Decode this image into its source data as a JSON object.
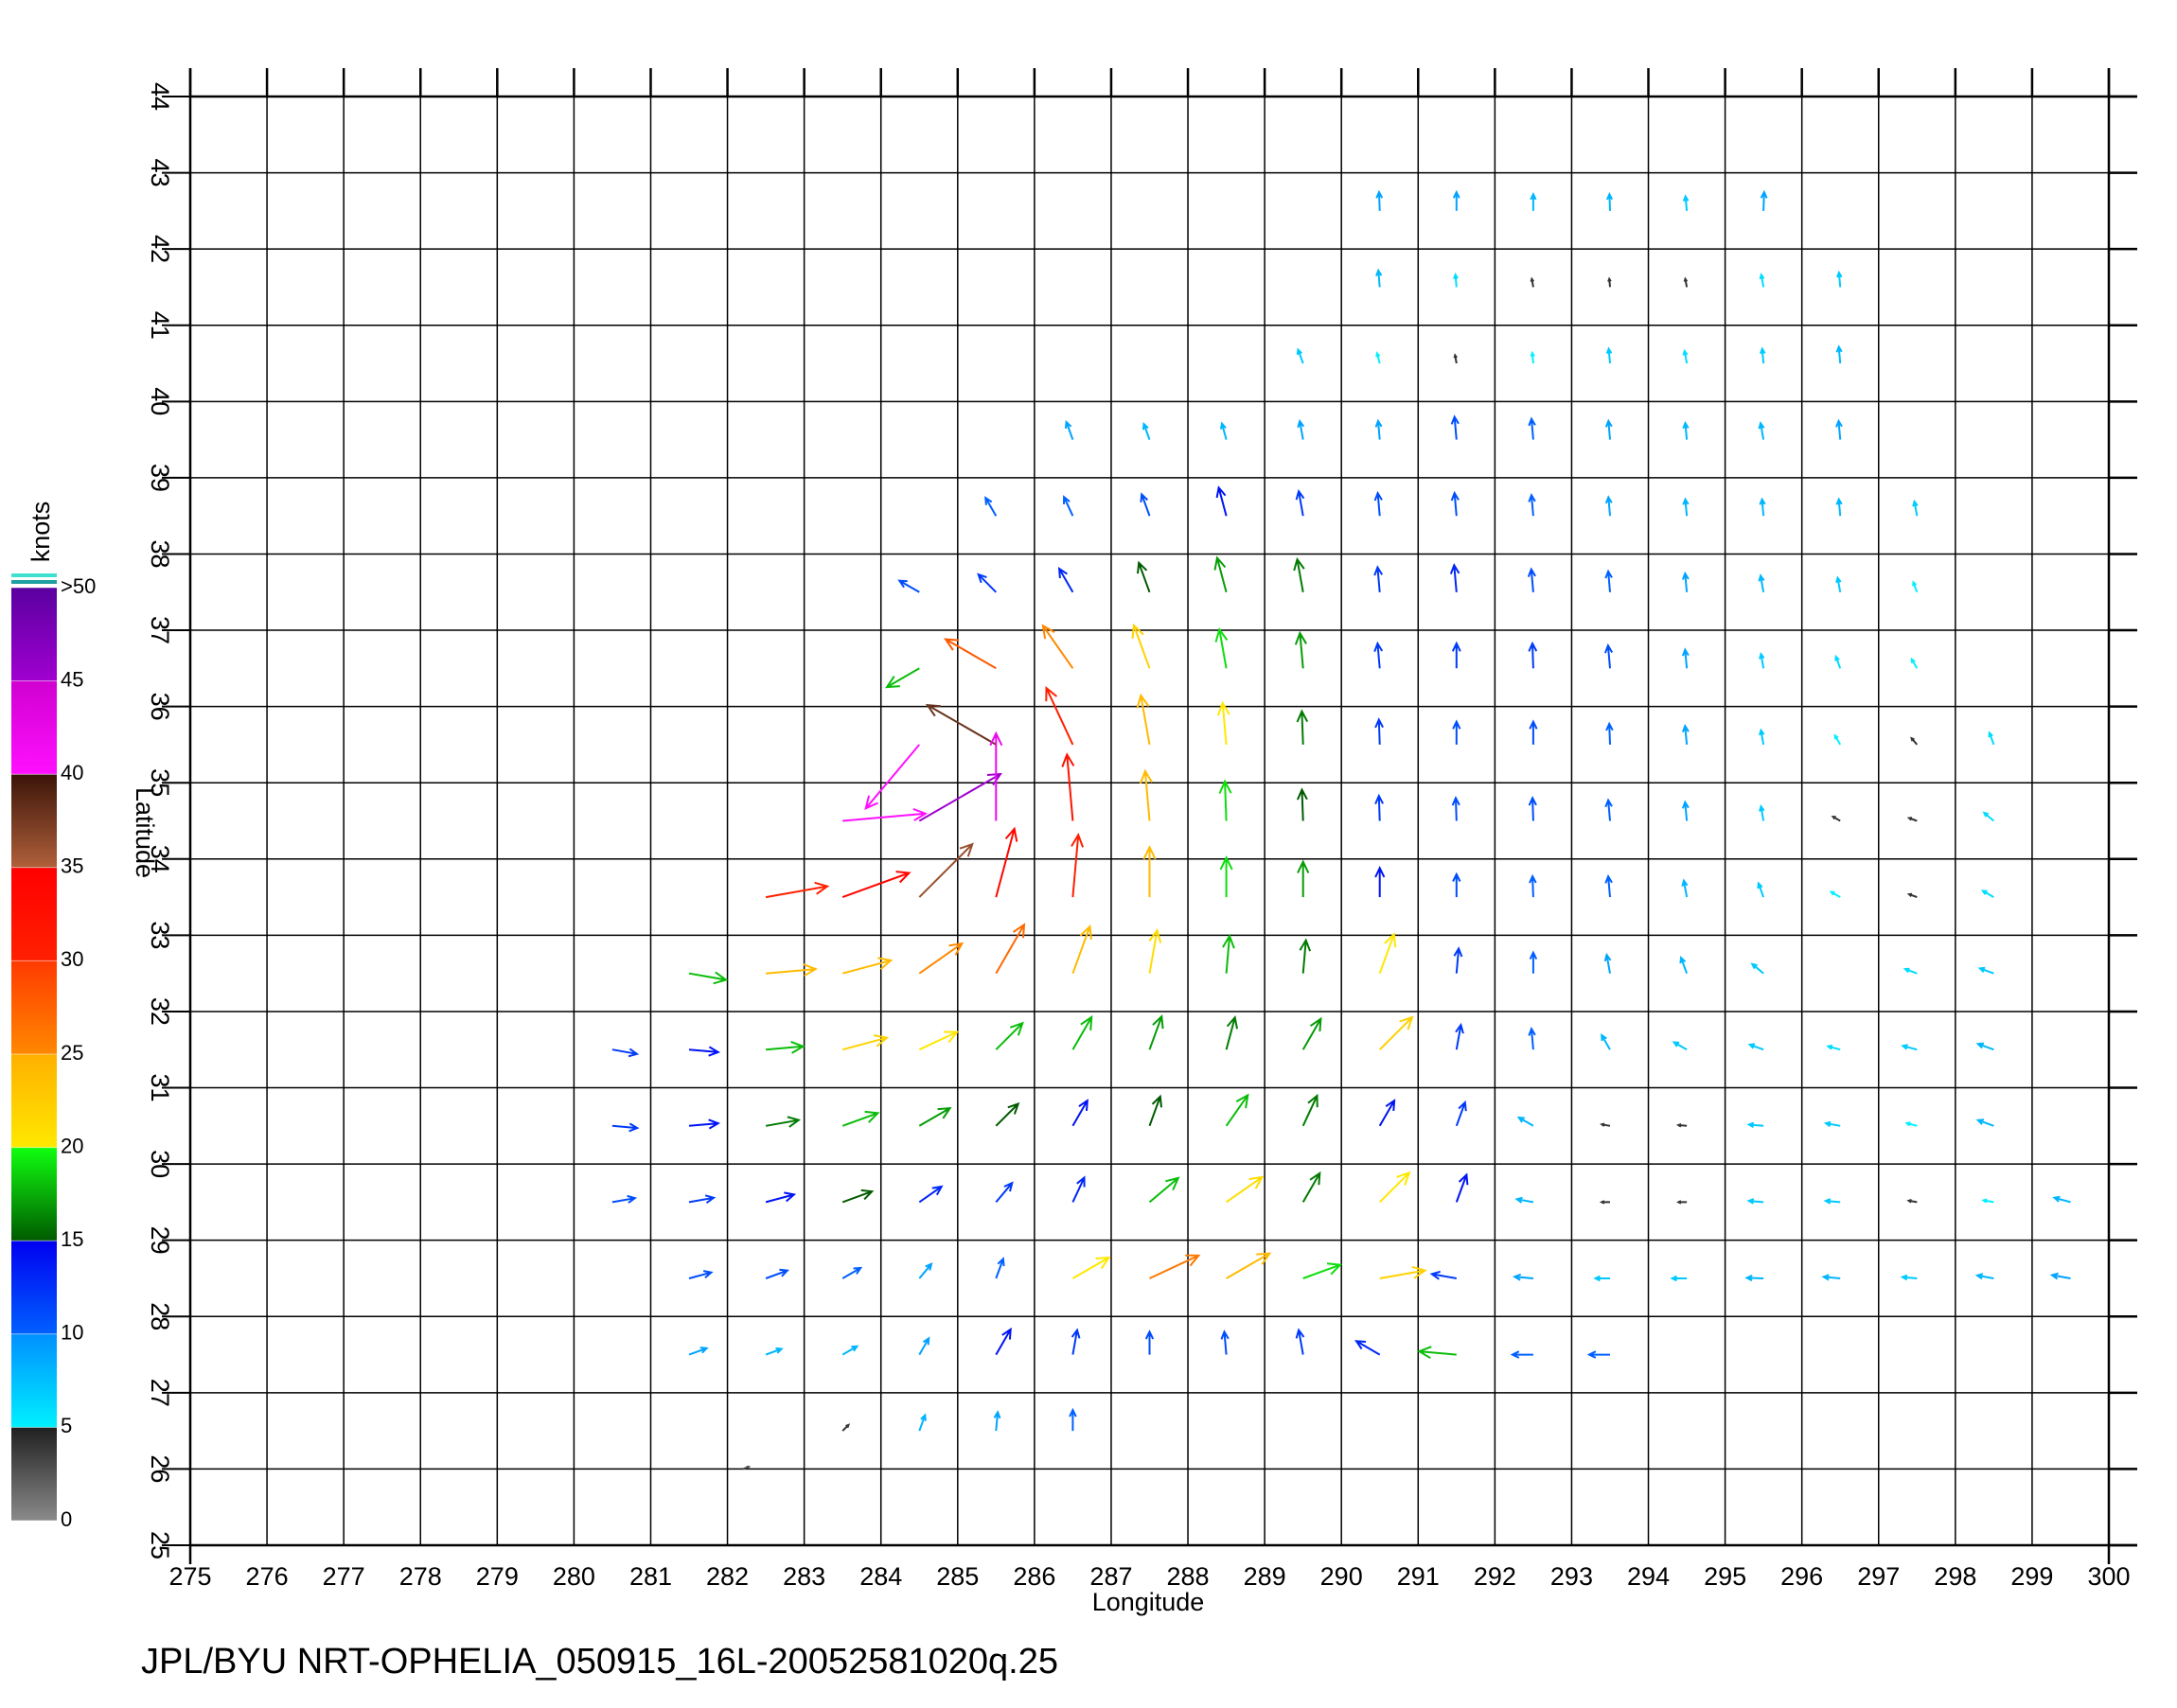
{
  "chart_data": {
    "type": "vector",
    "xlabel": "Longitude",
    "ylabel": "Latitude",
    "source": "JPL/BYU NRT-OPHELIA_050915_16L-20052581020q.25",
    "xlim": [
      275,
      300
    ],
    "ylim": [
      25,
      44
    ],
    "xticks": [
      275,
      276,
      277,
      278,
      279,
      280,
      281,
      282,
      283,
      284,
      285,
      286,
      287,
      288,
      289,
      290,
      291,
      292,
      293,
      294,
      295,
      296,
      297,
      298,
      299,
      300
    ],
    "yticks": [
      25,
      26,
      27,
      28,
      29,
      30,
      31,
      32,
      33,
      34,
      35,
      36,
      37,
      38,
      39,
      40,
      41,
      42,
      43,
      44
    ],
    "grid": true,
    "colorbar": {
      "label": "knots",
      "lim": [
        0,
        50
      ],
      "ticks": [
        0,
        5,
        10,
        15,
        20,
        25,
        30,
        35,
        40,
        45,
        {
          "value": 50,
          "label": ">50"
        }
      ],
      "colors": [
        [
          "#8a8a8a",
          "#202020"
        ],
        [
          "#00f0ff",
          "#0090ff"
        ],
        [
          "#0060ff",
          "#0000f0"
        ],
        [
          "#005a00",
          "#10ff10"
        ],
        [
          "#ffe800",
          "#ffb000"
        ],
        [
          "#ff8800",
          "#ff3a00"
        ],
        [
          "#ff2000",
          "#ff0000"
        ],
        [
          "#b0603a",
          "#3a1408"
        ],
        [
          "#ff10ff",
          "#d000d0"
        ],
        [
          "#a000d0",
          "#5a00a0"
        ]
      ]
    },
    "vectors": [
      [
        290.5,
        42.5,
        9,
        92
      ],
      [
        291.5,
        42.5,
        9,
        90
      ],
      [
        292.5,
        42.5,
        8,
        90
      ],
      [
        293.5,
        42.5,
        8,
        92
      ],
      [
        294.5,
        42.5,
        7,
        95
      ],
      [
        295.5,
        42.5,
        9,
        88
      ],
      [
        290.5,
        41.5,
        8,
        95
      ],
      [
        291.5,
        41.5,
        6,
        95
      ],
      [
        292.5,
        41.5,
        4,
        100
      ],
      [
        293.5,
        41.5,
        4,
        95
      ],
      [
        294.5,
        41.5,
        4,
        100
      ],
      [
        295.5,
        41.5,
        6,
        100
      ],
      [
        296.5,
        41.5,
        7,
        95
      ],
      [
        289.5,
        40.5,
        7,
        110
      ],
      [
        290.5,
        40.5,
        5,
        105
      ],
      [
        291.5,
        40.5,
        4,
        100
      ],
      [
        292.5,
        40.5,
        5,
        95
      ],
      [
        293.5,
        40.5,
        7,
        95
      ],
      [
        294.5,
        40.5,
        6,
        100
      ],
      [
        295.5,
        40.5,
        7,
        95
      ],
      [
        296.5,
        40.5,
        8,
        95
      ],
      [
        286.5,
        39.5,
        9,
        110
      ],
      [
        287.5,
        39.5,
        8,
        110
      ],
      [
        288.5,
        39.5,
        8,
        105
      ],
      [
        289.5,
        39.5,
        9,
        100
      ],
      [
        290.5,
        39.5,
        9,
        95
      ],
      [
        291.5,
        39.5,
        11,
        95
      ],
      [
        292.5,
        39.5,
        10,
        95
      ],
      [
        293.5,
        39.5,
        9,
        95
      ],
      [
        294.5,
        39.5,
        8,
        95
      ],
      [
        295.5,
        39.5,
        8,
        100
      ],
      [
        296.5,
        39.5,
        9,
        95
      ],
      [
        285.5,
        38.5,
        10,
        120
      ],
      [
        286.5,
        38.5,
        10,
        115
      ],
      [
        287.5,
        38.5,
        11,
        110
      ],
      [
        288.5,
        38.5,
        14,
        105
      ],
      [
        289.5,
        38.5,
        12,
        100
      ],
      [
        290.5,
        38.5,
        11,
        95
      ],
      [
        291.5,
        38.5,
        11,
        95
      ],
      [
        292.5,
        38.5,
        10,
        95
      ],
      [
        293.5,
        38.5,
        9,
        95
      ],
      [
        294.5,
        38.5,
        8,
        95
      ],
      [
        295.5,
        38.5,
        8,
        95
      ],
      [
        296.5,
        38.5,
        8,
        95
      ],
      [
        297.5,
        38.5,
        7,
        100
      ],
      [
        284.5,
        37.5,
        11,
        150
      ],
      [
        285.5,
        37.5,
        12,
        135
      ],
      [
        286.5,
        37.5,
        13,
        120
      ],
      [
        287.5,
        37.5,
        15,
        110
      ],
      [
        288.5,
        37.5,
        17,
        105
      ],
      [
        289.5,
        37.5,
        16,
        100
      ],
      [
        290.5,
        37.5,
        12,
        95
      ],
      [
        291.5,
        37.5,
        13,
        95
      ],
      [
        292.5,
        37.5,
        11,
        95
      ],
      [
        293.5,
        37.5,
        10,
        95
      ],
      [
        294.5,
        37.5,
        9,
        95
      ],
      [
        295.5,
        37.5,
        8,
        100
      ],
      [
        296.5,
        37.5,
        7,
        100
      ],
      [
        297.5,
        37.5,
        5,
        110
      ],
      [
        284.5,
        36.5,
        18,
        210
      ],
      [
        285.5,
        36.5,
        28,
        150
      ],
      [
        286.5,
        36.5,
        25,
        125
      ],
      [
        287.5,
        36.5,
        22,
        110
      ],
      [
        288.5,
        36.5,
        19,
        100
      ],
      [
        289.5,
        36.5,
        17,
        95
      ],
      [
        290.5,
        36.5,
        12,
        95
      ],
      [
        291.5,
        36.5,
        12,
        90
      ],
      [
        292.5,
        36.5,
        12,
        92
      ],
      [
        293.5,
        36.5,
        11,
        95
      ],
      [
        294.5,
        36.5,
        9,
        95
      ],
      [
        295.5,
        36.5,
        7,
        100
      ],
      [
        296.5,
        36.5,
        6,
        110
      ],
      [
        297.5,
        36.5,
        5,
        120
      ],
      [
        284.5,
        35.5,
        40,
        230
      ],
      [
        285.5,
        35.5,
        38,
        150
      ],
      [
        286.5,
        35.5,
        30,
        115
      ],
      [
        287.5,
        35.5,
        24,
        100
      ],
      [
        288.5,
        35.5,
        20,
        95
      ],
      [
        289.5,
        35.5,
        16,
        92
      ],
      [
        290.5,
        35.5,
        12,
        92
      ],
      [
        291.5,
        35.5,
        11,
        90
      ],
      [
        292.5,
        35.5,
        11,
        90
      ],
      [
        293.5,
        35.5,
        10,
        92
      ],
      [
        294.5,
        35.5,
        9,
        95
      ],
      [
        295.5,
        35.5,
        7,
        100
      ],
      [
        296.5,
        35.5,
        5,
        120
      ],
      [
        297.5,
        35.5,
        4,
        130
      ],
      [
        298.5,
        35.5,
        6,
        110
      ],
      [
        283.5,
        34.5,
        40,
        5
      ],
      [
        284.5,
        34.5,
        45,
        30
      ],
      [
        285.5,
        34.5,
        42,
        90
      ],
      [
        286.5,
        34.5,
        32,
        95
      ],
      [
        287.5,
        34.5,
        24,
        95
      ],
      [
        288.5,
        34.5,
        19,
        92
      ],
      [
        289.5,
        34.5,
        15,
        92
      ],
      [
        290.5,
        34.5,
        12,
        92
      ],
      [
        291.5,
        34.5,
        11,
        92
      ],
      [
        292.5,
        34.5,
        11,
        92
      ],
      [
        293.5,
        34.5,
        10,
        95
      ],
      [
        294.5,
        34.5,
        9,
        95
      ],
      [
        295.5,
        34.5,
        7,
        100
      ],
      [
        296.5,
        34.5,
        4,
        150
      ],
      [
        297.5,
        34.5,
        4,
        160
      ],
      [
        298.5,
        34.5,
        6,
        140
      ],
      [
        282.5,
        33.5,
        30,
        10
      ],
      [
        283.5,
        33.5,
        34,
        20
      ],
      [
        284.5,
        33.5,
        36,
        45
      ],
      [
        285.5,
        33.5,
        34,
        75
      ],
      [
        286.5,
        33.5,
        30,
        85
      ],
      [
        287.5,
        33.5,
        24,
        90
      ],
      [
        288.5,
        33.5,
        19,
        90
      ],
      [
        289.5,
        33.5,
        17,
        90
      ],
      [
        290.5,
        33.5,
        14,
        90
      ],
      [
        291.5,
        33.5,
        11,
        90
      ],
      [
        292.5,
        33.5,
        10,
        92
      ],
      [
        293.5,
        33.5,
        10,
        95
      ],
      [
        294.5,
        33.5,
        8,
        100
      ],
      [
        295.5,
        33.5,
        7,
        110
      ],
      [
        296.5,
        33.5,
        5,
        150
      ],
      [
        297.5,
        33.5,
        4,
        160
      ],
      [
        298.5,
        33.5,
        6,
        150
      ],
      [
        281.5,
        32.5,
        18,
        350
      ],
      [
        282.5,
        32.5,
        24,
        5
      ],
      [
        283.5,
        32.5,
        24,
        15
      ],
      [
        284.5,
        32.5,
        25,
        35
      ],
      [
        285.5,
        32.5,
        27,
        60
      ],
      [
        286.5,
        32.5,
        24,
        70
      ],
      [
        287.5,
        32.5,
        21,
        80
      ],
      [
        288.5,
        32.5,
        18,
        85
      ],
      [
        289.5,
        32.5,
        16,
        85
      ],
      [
        290.5,
        32.5,
        20,
        70
      ],
      [
        291.5,
        32.5,
        12,
        85
      ],
      [
        292.5,
        32.5,
        10,
        90
      ],
      [
        293.5,
        32.5,
        9,
        100
      ],
      [
        294.5,
        32.5,
        8,
        110
      ],
      [
        295.5,
        32.5,
        7,
        140
      ],
      [
        297.5,
        32.5,
        6,
        160
      ],
      [
        298.5,
        32.5,
        7,
        160
      ],
      [
        280.5,
        31.5,
        12,
        350
      ],
      [
        281.5,
        31.5,
        14,
        355
      ],
      [
        282.5,
        31.5,
        18,
        5
      ],
      [
        283.5,
        31.5,
        22,
        15
      ],
      [
        284.5,
        31.5,
        20,
        25
      ],
      [
        285.5,
        31.5,
        18,
        45
      ],
      [
        286.5,
        31.5,
        18,
        60
      ],
      [
        287.5,
        31.5,
        17,
        70
      ],
      [
        288.5,
        31.5,
        16,
        75
      ],
      [
        289.5,
        31.5,
        17,
        60
      ],
      [
        290.5,
        31.5,
        22,
        45
      ],
      [
        291.5,
        31.5,
        12,
        80
      ],
      [
        292.5,
        31.5,
        10,
        95
      ],
      [
        293.5,
        31.5,
        8,
        120
      ],
      [
        294.5,
        31.5,
        7,
        150
      ],
      [
        295.5,
        31.5,
        7,
        160
      ],
      [
        296.5,
        31.5,
        6,
        165
      ],
      [
        297.5,
        31.5,
        7,
        165
      ],
      [
        298.5,
        31.5,
        8,
        160
      ],
      [
        280.5,
        30.5,
        12,
        355
      ],
      [
        281.5,
        30.5,
        14,
        5
      ],
      [
        282.5,
        30.5,
        16,
        10
      ],
      [
        283.5,
        30.5,
        18,
        20
      ],
      [
        284.5,
        30.5,
        17,
        30
      ],
      [
        285.5,
        30.5,
        15,
        45
      ],
      [
        286.5,
        30.5,
        14,
        60
      ],
      [
        287.5,
        30.5,
        15,
        70
      ],
      [
        288.5,
        30.5,
        18,
        55
      ],
      [
        289.5,
        30.5,
        16,
        65
      ],
      [
        290.5,
        30.5,
        14,
        60
      ],
      [
        291.5,
        30.5,
        12,
        70
      ],
      [
        292.5,
        30.5,
        8,
        150
      ],
      [
        293.5,
        30.5,
        4,
        170
      ],
      [
        294.5,
        30.5,
        4,
        175
      ],
      [
        295.5,
        30.5,
        7,
        175
      ],
      [
        296.5,
        30.5,
        7,
        170
      ],
      [
        297.5,
        30.5,
        5,
        165
      ],
      [
        298.5,
        30.5,
        8,
        160
      ],
      [
        280.5,
        29.5,
        11,
        10
      ],
      [
        281.5,
        29.5,
        12,
        10
      ],
      [
        282.5,
        29.5,
        14,
        15
      ],
      [
        283.5,
        29.5,
        15,
        20
      ],
      [
        284.5,
        29.5,
        13,
        35
      ],
      [
        285.5,
        29.5,
        12,
        50
      ],
      [
        286.5,
        29.5,
        13,
        65
      ],
      [
        287.5,
        29.5,
        18,
        40
      ],
      [
        288.5,
        29.5,
        21,
        35
      ],
      [
        289.5,
        29.5,
        16,
        60
      ],
      [
        290.5,
        29.5,
        20,
        45
      ],
      [
        291.5,
        29.5,
        14,
        70
      ],
      [
        292.5,
        29.5,
        8,
        170
      ],
      [
        293.5,
        29.5,
        4,
        180
      ],
      [
        294.5,
        29.5,
        4,
        180
      ],
      [
        295.5,
        29.5,
        7,
        175
      ],
      [
        296.5,
        29.5,
        7,
        175
      ],
      [
        297.5,
        29.5,
        4,
        170
      ],
      [
        298.5,
        29.5,
        5,
        170
      ],
      [
        299.5,
        29.5,
        8,
        165
      ],
      [
        281.5,
        28.5,
        11,
        15
      ],
      [
        282.5,
        28.5,
        11,
        20
      ],
      [
        283.5,
        28.5,
        10,
        30
      ],
      [
        284.5,
        28.5,
        9,
        50
      ],
      [
        285.5,
        28.5,
        10,
        70
      ],
      [
        286.5,
        28.5,
        20,
        30
      ],
      [
        287.5,
        28.5,
        26,
        25
      ],
      [
        288.5,
        28.5,
        24,
        30
      ],
      [
        289.5,
        28.5,
        19,
        20
      ],
      [
        290.5,
        28.5,
        22,
        10
      ],
      [
        291.5,
        28.5,
        12,
        170
      ],
      [
        292.5,
        28.5,
        9,
        175
      ],
      [
        293.5,
        28.5,
        7,
        180
      ],
      [
        294.5,
        28.5,
        7,
        180
      ],
      [
        295.5,
        28.5,
        8,
        178
      ],
      [
        296.5,
        28.5,
        8,
        175
      ],
      [
        297.5,
        28.5,
        7,
        175
      ],
      [
        298.5,
        28.5,
        8,
        170
      ],
      [
        299.5,
        28.5,
        9,
        170
      ],
      [
        281.5,
        27.5,
        9,
        20
      ],
      [
        282.5,
        27.5,
        8,
        20
      ],
      [
        283.5,
        27.5,
        8,
        30
      ],
      [
        284.5,
        27.5,
        9,
        60
      ],
      [
        285.5,
        27.5,
        14,
        60
      ],
      [
        286.5,
        27.5,
        12,
        80
      ],
      [
        287.5,
        27.5,
        11,
        90
      ],
      [
        288.5,
        27.5,
        11,
        95
      ],
      [
        289.5,
        27.5,
        12,
        100
      ],
      [
        290.5,
        27.5,
        13,
        150
      ],
      [
        291.5,
        27.5,
        18,
        175
      ],
      [
        292.5,
        27.5,
        10,
        180
      ],
      [
        293.5,
        27.5,
        10,
        180
      ],
      [
        282.2,
        26.0,
        3,
        20
      ],
      [
        283.5,
        26.5,
        4,
        45
      ],
      [
        284.5,
        26.5,
        8,
        70
      ],
      [
        285.5,
        26.5,
        9,
        85
      ],
      [
        286.5,
        26.5,
        10,
        90
      ]
    ]
  }
}
